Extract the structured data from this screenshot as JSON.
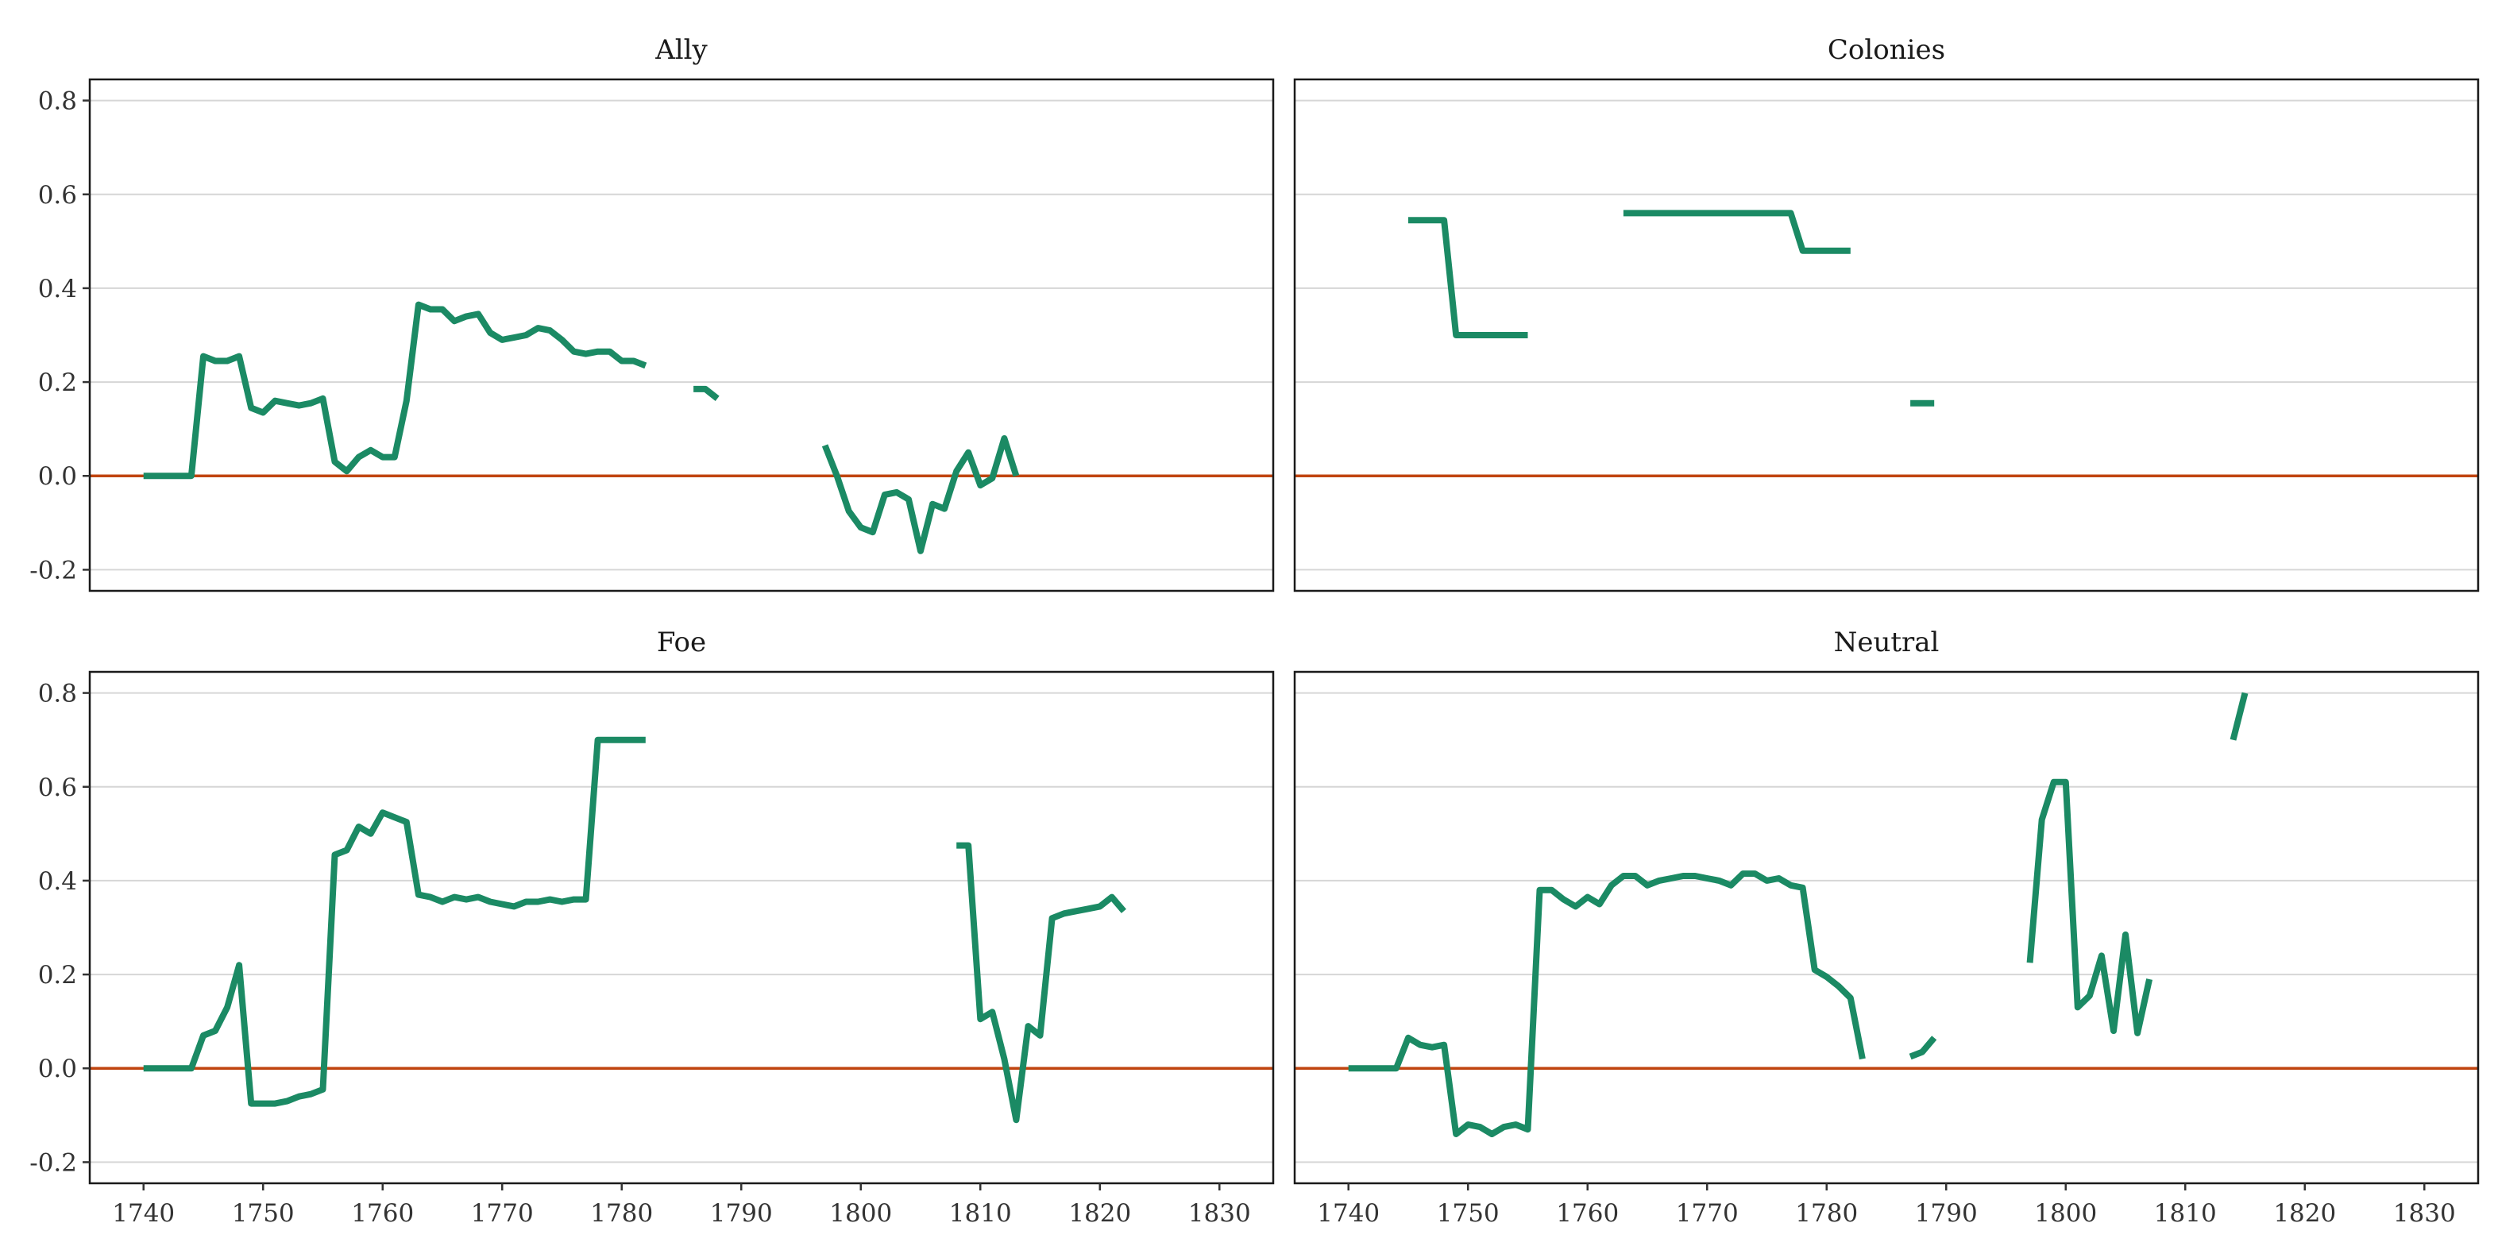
{
  "chart_data": [
    {
      "type": "line",
      "title": "Ally",
      "xlim": [
        1735.5,
        1834.5
      ],
      "ylim": [
        -0.245,
        0.845
      ],
      "x_ticks": [
        1740,
        1750,
        1760,
        1770,
        1780,
        1790,
        1800,
        1810,
        1820,
        1830
      ],
      "y_ticks": [
        -0.2,
        0.0,
        0.2,
        0.4,
        0.6,
        0.8
      ],
      "reference_line": 0.0,
      "series": [
        {
          "segments": [
            [
              [
                1740,
                0.0
              ],
              [
                1741,
                0.0
              ],
              [
                1742,
                0.0
              ],
              [
                1743,
                0.0
              ],
              [
                1744,
                0.0
              ],
              [
                1745,
                0.255
              ],
              [
                1746,
                0.245
              ],
              [
                1747,
                0.245
              ],
              [
                1748,
                0.255
              ],
              [
                1749,
                0.145
              ],
              [
                1750,
                0.135
              ],
              [
                1751,
                0.16
              ],
              [
                1752,
                0.155
              ],
              [
                1753,
                0.15
              ],
              [
                1754,
                0.155
              ],
              [
                1755,
                0.165
              ],
              [
                1756,
                0.03
              ],
              [
                1757,
                0.01
              ],
              [
                1758,
                0.04
              ],
              [
                1759,
                0.055
              ],
              [
                1760,
                0.04
              ],
              [
                1761,
                0.04
              ],
              [
                1762,
                0.16
              ],
              [
                1763,
                0.365
              ],
              [
                1764,
                0.355
              ],
              [
                1765,
                0.355
              ],
              [
                1766,
                0.33
              ],
              [
                1767,
                0.34
              ],
              [
                1768,
                0.345
              ],
              [
                1769,
                0.305
              ],
              [
                1770,
                0.29
              ],
              [
                1771,
                0.295
              ],
              [
                1772,
                0.3
              ],
              [
                1773,
                0.315
              ],
              [
                1774,
                0.31
              ],
              [
                1775,
                0.29
              ],
              [
                1776,
                0.265
              ],
              [
                1777,
                0.26
              ],
              [
                1778,
                0.265
              ],
              [
                1779,
                0.265
              ],
              [
                1780,
                0.245
              ],
              [
                1781,
                0.245
              ],
              [
                1782,
                0.235
              ]
            ],
            [
              [
                1786,
                0.185
              ],
              [
                1787,
                0.185
              ],
              [
                1788,
                0.165
              ]
            ],
            [
              [
                1797,
                0.065
              ],
              [
                1798,
                0.0
              ],
              [
                1799,
                -0.075
              ],
              [
                1800,
                -0.11
              ],
              [
                1801,
                -0.12
              ],
              [
                1802,
                -0.04
              ],
              [
                1803,
                -0.035
              ],
              [
                1804,
                -0.05
              ],
              [
                1805,
                -0.16
              ],
              [
                1806,
                -0.06
              ],
              [
                1807,
                -0.07
              ],
              [
                1808,
                0.01
              ],
              [
                1809,
                0.05
              ],
              [
                1810,
                -0.02
              ],
              [
                1811,
                -0.005
              ],
              [
                1812,
                0.08
              ],
              [
                1813,
                0.0
              ]
            ]
          ]
        }
      ]
    },
    {
      "type": "line",
      "title": "Colonies",
      "xlim": [
        1735.5,
        1834.5
      ],
      "ylim": [
        -0.245,
        0.845
      ],
      "x_ticks": [
        1740,
        1750,
        1760,
        1770,
        1780,
        1790,
        1800,
        1810,
        1820,
        1830
      ],
      "y_ticks": [
        -0.2,
        0.0,
        0.2,
        0.4,
        0.6,
        0.8
      ],
      "reference_line": 0.0,
      "series": [
        {
          "segments": [
            [
              [
                1745,
                0.545
              ],
              [
                1746,
                0.545
              ],
              [
                1747,
                0.545
              ],
              [
                1748,
                0.545
              ],
              [
                1749,
                0.3
              ],
              [
                1750,
                0.3
              ],
              [
                1751,
                0.3
              ],
              [
                1752,
                0.3
              ],
              [
                1753,
                0.3
              ],
              [
                1754,
                0.3
              ],
              [
                1755,
                0.3
              ]
            ],
            [
              [
                1763,
                0.56
              ],
              [
                1764,
                0.56
              ],
              [
                1765,
                0.56
              ],
              [
                1766,
                0.56
              ],
              [
                1767,
                0.56
              ],
              [
                1768,
                0.56
              ],
              [
                1769,
                0.56
              ],
              [
                1770,
                0.56
              ],
              [
                1771,
                0.56
              ],
              [
                1772,
                0.56
              ],
              [
                1773,
                0.56
              ],
              [
                1774,
                0.56
              ],
              [
                1775,
                0.56
              ],
              [
                1776,
                0.56
              ],
              [
                1777,
                0.56
              ],
              [
                1778,
                0.48
              ],
              [
                1779,
                0.48
              ],
              [
                1780,
                0.48
              ],
              [
                1781,
                0.48
              ],
              [
                1782,
                0.48
              ]
            ],
            [
              [
                1787,
                0.155
              ],
              [
                1788,
                0.155
              ],
              [
                1789,
                0.155
              ]
            ]
          ]
        }
      ]
    },
    {
      "type": "line",
      "title": "Foe",
      "xlim": [
        1735.5,
        1834.5
      ],
      "ylim": [
        -0.245,
        0.845
      ],
      "x_ticks": [
        1740,
        1750,
        1760,
        1770,
        1780,
        1790,
        1800,
        1810,
        1820,
        1830
      ],
      "y_ticks": [
        -0.2,
        0.0,
        0.2,
        0.4,
        0.6,
        0.8
      ],
      "reference_line": 0.0,
      "series": [
        {
          "segments": [
            [
              [
                1740,
                0.0
              ],
              [
                1741,
                0.0
              ],
              [
                1742,
                0.0
              ],
              [
                1743,
                0.0
              ],
              [
                1744,
                0.0
              ],
              [
                1745,
                0.07
              ],
              [
                1746,
                0.08
              ],
              [
                1747,
                0.13
              ],
              [
                1748,
                0.22
              ],
              [
                1749,
                -0.075
              ],
              [
                1750,
                -0.075
              ],
              [
                1751,
                -0.075
              ],
              [
                1752,
                -0.07
              ],
              [
                1753,
                -0.06
              ],
              [
                1754,
                -0.055
              ],
              [
                1755,
                -0.045
              ],
              [
                1756,
                0.455
              ],
              [
                1757,
                0.465
              ],
              [
                1758,
                0.515
              ],
              [
                1759,
                0.5
              ],
              [
                1760,
                0.545
              ],
              [
                1761,
                0.535
              ],
              [
                1762,
                0.525
              ],
              [
                1763,
                0.37
              ],
              [
                1764,
                0.365
              ],
              [
                1765,
                0.355
              ],
              [
                1766,
                0.365
              ],
              [
                1767,
                0.36
              ],
              [
                1768,
                0.365
              ],
              [
                1769,
                0.355
              ],
              [
                1770,
                0.35
              ],
              [
                1771,
                0.345
              ],
              [
                1772,
                0.355
              ],
              [
                1773,
                0.355
              ],
              [
                1774,
                0.36
              ],
              [
                1775,
                0.355
              ],
              [
                1776,
                0.36
              ],
              [
                1777,
                0.36
              ],
              [
                1778,
                0.7
              ],
              [
                1779,
                0.7
              ],
              [
                1780,
                0.7
              ],
              [
                1781,
                0.7
              ],
              [
                1782,
                0.7
              ]
            ],
            [
              [
                1808,
                0.475
              ],
              [
                1809,
                0.475
              ],
              [
                1810,
                0.105
              ],
              [
                1811,
                0.12
              ],
              [
                1812,
                0.02
              ],
              [
                1813,
                -0.11
              ],
              [
                1814,
                0.09
              ],
              [
                1815,
                0.07
              ],
              [
                1816,
                0.32
              ],
              [
                1817,
                0.33
              ],
              [
                1818,
                0.335
              ],
              [
                1819,
                0.34
              ],
              [
                1820,
                0.345
              ],
              [
                1821,
                0.365
              ],
              [
                1822,
                0.335
              ]
            ]
          ]
        }
      ]
    },
    {
      "type": "line",
      "title": "Neutral",
      "xlim": [
        1735.5,
        1834.5
      ],
      "ylim": [
        -0.245,
        0.845
      ],
      "x_ticks": [
        1740,
        1750,
        1760,
        1770,
        1780,
        1790,
        1800,
        1810,
        1820,
        1830
      ],
      "y_ticks": [
        -0.2,
        0.0,
        0.2,
        0.4,
        0.6,
        0.8
      ],
      "reference_line": 0.0,
      "series": [
        {
          "segments": [
            [
              [
                1740,
                0.0
              ],
              [
                1741,
                0.0
              ],
              [
                1742,
                0.0
              ],
              [
                1743,
                0.0
              ],
              [
                1744,
                0.0
              ],
              [
                1745,
                0.065
              ],
              [
                1746,
                0.05
              ],
              [
                1747,
                0.045
              ],
              [
                1748,
                0.05
              ],
              [
                1749,
                -0.14
              ],
              [
                1750,
                -0.12
              ],
              [
                1751,
                -0.125
              ],
              [
                1752,
                -0.14
              ],
              [
                1753,
                -0.125
              ],
              [
                1754,
                -0.12
              ],
              [
                1755,
                -0.13
              ],
              [
                1756,
                0.38
              ],
              [
                1757,
                0.38
              ],
              [
                1758,
                0.36
              ],
              [
                1759,
                0.345
              ],
              [
                1760,
                0.365
              ],
              [
                1761,
                0.35
              ],
              [
                1762,
                0.39
              ],
              [
                1763,
                0.41
              ],
              [
                1764,
                0.41
              ],
              [
                1765,
                0.39
              ],
              [
                1766,
                0.4
              ],
              [
                1767,
                0.405
              ],
              [
                1768,
                0.41
              ],
              [
                1769,
                0.41
              ],
              [
                1770,
                0.405
              ],
              [
                1771,
                0.4
              ],
              [
                1772,
                0.39
              ],
              [
                1773,
                0.415
              ],
              [
                1774,
                0.415
              ],
              [
                1775,
                0.4
              ],
              [
                1776,
                0.405
              ],
              [
                1777,
                0.39
              ],
              [
                1778,
                0.385
              ],
              [
                1779,
                0.21
              ],
              [
                1780,
                0.195
              ],
              [
                1781,
                0.175
              ],
              [
                1782,
                0.15
              ],
              [
                1783,
                0.02
              ]
            ],
            [
              [
                1787,
                0.025
              ],
              [
                1788,
                0.035
              ],
              [
                1789,
                0.065
              ]
            ],
            [
              [
                1797,
                0.225
              ],
              [
                1798,
                0.53
              ],
              [
                1799,
                0.61
              ],
              [
                1800,
                0.61
              ],
              [
                1801,
                0.13
              ],
              [
                1802,
                0.155
              ],
              [
                1803,
                0.24
              ],
              [
                1804,
                0.08
              ],
              [
                1805,
                0.285
              ],
              [
                1806,
                0.075
              ],
              [
                1807,
                0.19
              ]
            ],
            [
              [
                1814,
                0.7
              ],
              [
                1815,
                0.8
              ]
            ]
          ]
        }
      ]
    }
  ],
  "colors": {
    "series": "#1b8a64",
    "reference": "#c0440f",
    "grid": "#d6d6d6",
    "frame": "#1a1a1a"
  }
}
